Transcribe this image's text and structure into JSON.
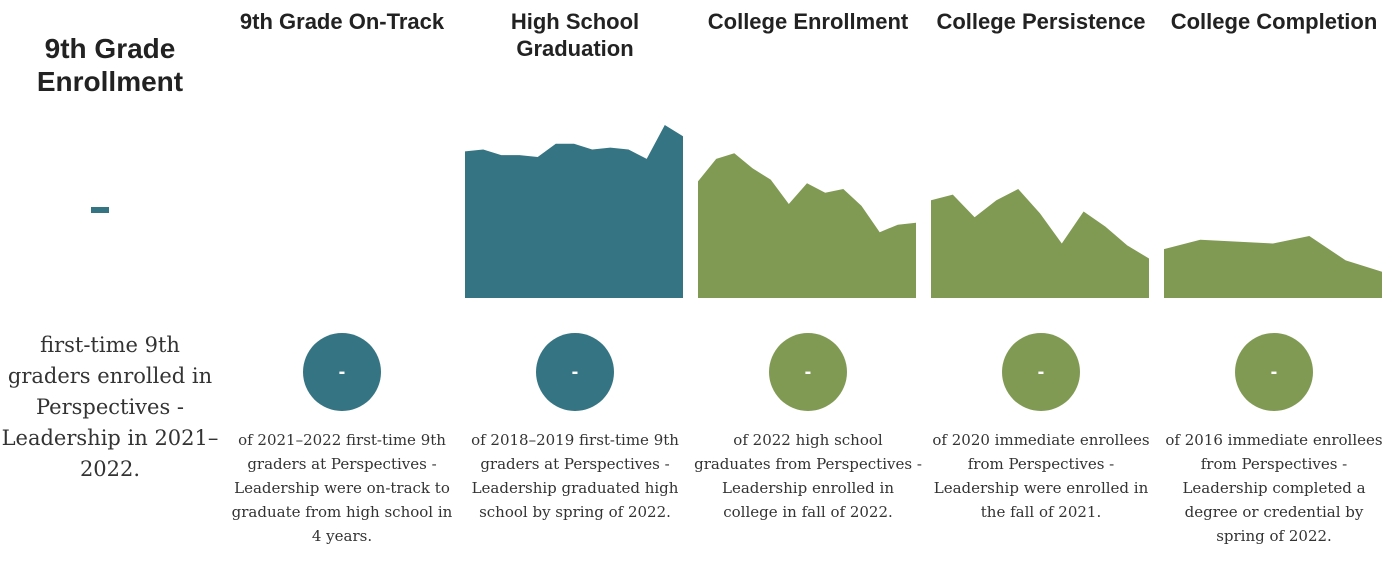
{
  "enrollment": {
    "title": "9th Grade Enrollment",
    "value": "-",
    "description": "first-time 9th graders enrolled in Perspectives - Leadership in 2021–2022."
  },
  "colors": {
    "teal": "#357483",
    "green": "#809a53"
  },
  "chart_data": {
    "type": "area",
    "note_y_scale": "relative",
    "stages": [
      {
        "title": "9th Grade On-Track",
        "value": "-",
        "color": "#357483",
        "series": [],
        "description": "of 2021–2022 first-time 9th graders at Perspectives - Leadership were on-track to graduate from high school in 4 years."
      },
      {
        "title": "High School Graduation",
        "value": "-",
        "color": "#357483",
        "series": [
          0.78,
          0.79,
          0.76,
          0.76,
          0.75,
          0.82,
          0.82,
          0.79,
          0.8,
          0.79,
          0.74,
          0.92,
          0.86
        ],
        "description": "of 2018–2019 first-time 9th graders at Perspectives - Leadership graduated high school by spring of 2022."
      },
      {
        "title": "College Enrollment",
        "value": "-",
        "color": "#809a53",
        "series": [
          0.62,
          0.74,
          0.77,
          0.69,
          0.63,
          0.5,
          0.61,
          0.56,
          0.58,
          0.49,
          0.35,
          0.39,
          0.4
        ],
        "description": "of 2022 high school graduates from Perspectives - Leadership enrolled in college in fall of 2022."
      },
      {
        "title": "College Persistence",
        "value": "-",
        "color": "#809a53",
        "series": [
          0.52,
          0.55,
          0.43,
          0.52,
          0.58,
          0.45,
          0.29,
          0.46,
          0.38,
          0.28,
          0.21
        ],
        "description": "of 2020 immediate enrollees from Perspectives - Leadership were enrolled in the fall of 2021."
      },
      {
        "title": "College Completion",
        "value": "-",
        "color": "#809a53",
        "series": [
          0.26,
          0.31,
          0.3,
          0.29,
          0.33,
          0.2,
          0.14
        ],
        "description": "of 2016 immediate enrollees from Perspectives - Leadership completed a degree or credential by spring of 2022."
      }
    ]
  }
}
